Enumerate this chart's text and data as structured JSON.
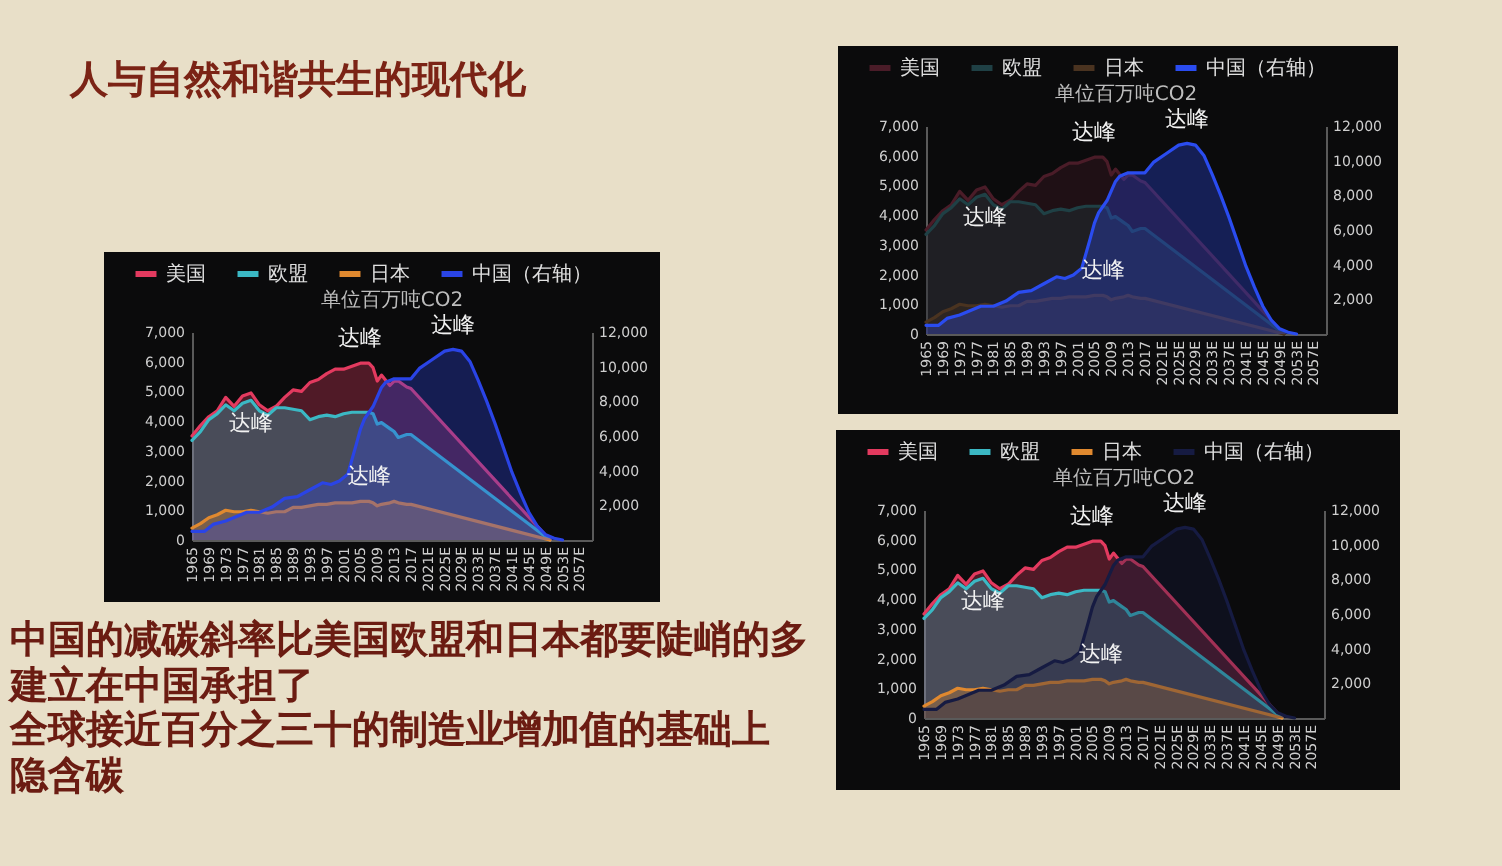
{
  "chart_data": [
    {
      "type": "other",
      "title": "人与自然和谐共生的现代化",
      "annotations": [
        "中国的减碳斜率比美国欧盟和日本都要陡峭的多",
        "建立在中国承担了",
        "全球接近百分之三十的制造业增加值的基础上",
        "隐含碳"
      ]
    },
    {
      "type": "area",
      "annotations": [
        "单位百万吨CO2",
        {
          "text": "达峰",
          "x": 2005,
          "y": 5950
        },
        {
          "text": "达峰",
          "x": 1979,
          "y": 4700
        },
        {
          "text": "达峰",
          "x": 2007,
          "y": 1300
        },
        {
          "text": "达峰",
          "x": 2027,
          "y": 6400
        }
      ],
      "xlim": [
        1965,
        2060
      ],
      "xticks": [
        1965,
        1969,
        1973,
        1977,
        1981,
        1985,
        1989,
        1993,
        1997,
        2001,
        2005,
        2009,
        2013,
        2017,
        {
          "value": 2021,
          "label": "2021E"
        },
        {
          "value": 2025,
          "label": "2025E"
        },
        {
          "value": 2029,
          "label": "2029E"
        },
        {
          "value": 2033,
          "label": "2033E"
        },
        {
          "value": 2037,
          "label": "2037E"
        },
        {
          "value": 2041,
          "label": "2041E"
        },
        {
          "value": 2045,
          "label": "2045E"
        },
        {
          "value": 2049,
          "label": "2049E"
        },
        {
          "value": 2053,
          "label": "2053E"
        },
        {
          "value": 2057,
          "label": "2057E"
        }
      ],
      "ylim": [
        0,
        7000
      ],
      "yticks": [
        {
          "value": 0,
          "label": "0"
        },
        {
          "value": 1000,
          "label": "1,000"
        },
        {
          "value": 2000,
          "label": "2,000"
        },
        {
          "value": 3000,
          "label": "3,000"
        },
        {
          "value": 4000,
          "label": "4,000"
        },
        {
          "value": 5000,
          "label": "5,000"
        },
        {
          "value": 6000,
          "label": "6,000"
        },
        {
          "value": 7000,
          "label": "7,000"
        }
      ],
      "y2lim": [
        0,
        12000
      ],
      "y2ticks": [
        {
          "value": 2000,
          "label": "2,000"
        },
        {
          "value": 4000,
          "label": "4,000"
        },
        {
          "value": 6000,
          "label": "6,000"
        },
        {
          "value": 8000,
          "label": "8,000"
        },
        {
          "value": 10000,
          "label": "10,000"
        },
        {
          "value": 12000,
          "label": "12,000"
        }
      ],
      "legend": "top",
      "series": [
        {
          "name": "美国",
          "color": "#e33a5f",
          "x": [
            1965,
            1967,
            1969,
            1971,
            1973,
            1975,
            1977,
            1979,
            1981,
            1983,
            1985,
            1987,
            1989,
            1991,
            1993,
            1995,
            1997,
            1999,
            2001,
            2003,
            2005,
            2007,
            2008,
            2009,
            2010,
            2012,
            2013,
            2014,
            2016,
            2017,
            2050
          ],
          "values": [
            3500,
            3850,
            4150,
            4350,
            4800,
            4500,
            4850,
            4950,
            4550,
            4350,
            4500,
            4800,
            5050,
            5000,
            5300,
            5400,
            5600,
            5750,
            5750,
            5850,
            5950,
            5950,
            5800,
            5350,
            5550,
            5200,
            5350,
            5350,
            5150,
            5100,
            0
          ]
        },
        {
          "name": "欧盟",
          "color": "#3bb8c4",
          "x": [
            1965,
            1967,
            1969,
            1971,
            1973,
            1975,
            1977,
            1979,
            1981,
            1983,
            1985,
            1987,
            1989,
            1991,
            1993,
            1995,
            1997,
            1999,
            2001,
            2003,
            2005,
            2007,
            2008,
            2009,
            2010,
            2012,
            2013,
            2014,
            2016,
            2017,
            2050
          ],
          "values": [
            3350,
            3650,
            4050,
            4250,
            4550,
            4350,
            4600,
            4700,
            4350,
            4200,
            4450,
            4450,
            4400,
            4350,
            4050,
            4150,
            4200,
            4150,
            4250,
            4300,
            4300,
            4300,
            4250,
            3900,
            3950,
            3750,
            3650,
            3450,
            3550,
            3550,
            0
          ]
        },
        {
          "name": "日本",
          "color": "#e0892f",
          "x": [
            1965,
            1967,
            1969,
            1971,
            1973,
            1975,
            1977,
            1979,
            1981,
            1983,
            1985,
            1987,
            1989,
            1991,
            1993,
            1995,
            1997,
            1999,
            2001,
            2003,
            2005,
            2007,
            2008,
            2009,
            2010,
            2012,
            2013,
            2014,
            2016,
            2017,
            2050
          ],
          "values": [
            400,
            550,
            750,
            850,
            1000,
            950,
            950,
            1000,
            950,
            900,
            950,
            950,
            1100,
            1100,
            1150,
            1200,
            1200,
            1250,
            1250,
            1250,
            1300,
            1300,
            1250,
            1150,
            1200,
            1250,
            1300,
            1250,
            1200,
            1200,
            0
          ]
        },
        {
          "name": "中国（右轴）",
          "color": "#2a44e6",
          "axis": "y2",
          "x": [
            1965,
            1968,
            1970,
            1973,
            1976,
            1978,
            1981,
            1984,
            1987,
            1990,
            1993,
            1996,
            1998,
            2000,
            2002,
            2004,
            2005,
            2006,
            2008,
            2010,
            2011,
            2013,
            2015,
            2017,
            2019,
            2022,
            2025,
            2027,
            2029,
            2031,
            2033,
            2035,
            2037,
            2039,
            2041,
            2043,
            2045,
            2047,
            2049,
            2051,
            2053
          ],
          "values": [
            500,
            500,
            900,
            1100,
            1400,
            1600,
            1600,
            1900,
            2400,
            2500,
            2900,
            3300,
            3200,
            3400,
            3800,
            5500,
            6400,
            7000,
            7700,
            8800,
            9100,
            9300,
            9300,
            9300,
            9900,
            10400,
            10900,
            11000,
            10900,
            10300,
            9200,
            8000,
            6700,
            5300,
            3900,
            2700,
            1600,
            800,
            300,
            100,
            0
          ]
        }
      ]
    },
    {
      "type": "area",
      "annotations": [
        "单位百万吨CO2",
        {
          "text": "达峰",
          "x": 2005,
          "y": 5950
        },
        {
          "text": "达峰",
          "x": 1979,
          "y": 4700
        },
        {
          "text": "达峰",
          "x": 2007,
          "y": 1300
        },
        {
          "text": "达峰",
          "x": 2027,
          "y": 6400
        }
      ],
      "xlim": [
        1965,
        2060
      ],
      "xticks": [
        1965,
        1969,
        1973,
        1977,
        1981,
        1985,
        1989,
        1993,
        1997,
        2001,
        2005,
        2009,
        2013,
        2017,
        {
          "value": 2021,
          "label": "2021E"
        },
        {
          "value": 2025,
          "label": "2025E"
        },
        {
          "value": 2029,
          "label": "2029E"
        },
        {
          "value": 2033,
          "label": "2033E"
        },
        {
          "value": 2037,
          "label": "2037E"
        },
        {
          "value": 2041,
          "label": "2041E"
        },
        {
          "value": 2045,
          "label": "2045E"
        },
        {
          "value": 2049,
          "label": "2049E"
        },
        {
          "value": 2053,
          "label": "2053E"
        },
        {
          "value": 2057,
          "label": "2057E"
        }
      ],
      "ylim": [
        0,
        7000
      ],
      "yticks": [
        {
          "value": 0,
          "label": "0"
        },
        {
          "value": 1000,
          "label": "1,000"
        },
        {
          "value": 2000,
          "label": "2,000"
        },
        {
          "value": 3000,
          "label": "3,000"
        },
        {
          "value": 4000,
          "label": "4,000"
        },
        {
          "value": 5000,
          "label": "5,000"
        },
        {
          "value": 6000,
          "label": "6,000"
        },
        {
          "value": 7000,
          "label": "7,000"
        }
      ],
      "y2lim": [
        0,
        12000
      ],
      "y2ticks": [
        {
          "value": 2000,
          "label": "2,000"
        },
        {
          "value": 4000,
          "label": "4,000"
        },
        {
          "value": 6000,
          "label": "6,000"
        },
        {
          "value": 8000,
          "label": "8,000"
        },
        {
          "value": 10000,
          "label": "10,000"
        },
        {
          "value": 12000,
          "label": "12,000"
        }
      ],
      "legend": "top",
      "series": [
        {
          "name": "美国",
          "color": "#4a1c28",
          "x": [
            1965,
            1967,
            1969,
            1971,
            1973,
            1975,
            1977,
            1979,
            1981,
            1983,
            1985,
            1987,
            1989,
            1991,
            1993,
            1995,
            1997,
            1999,
            2001,
            2003,
            2005,
            2007,
            2008,
            2009,
            2010,
            2012,
            2013,
            2014,
            2016,
            2017,
            2050
          ],
          "values": [
            3500,
            3850,
            4150,
            4350,
            4800,
            4500,
            4850,
            4950,
            4550,
            4350,
            4500,
            4800,
            5050,
            5000,
            5300,
            5400,
            5600,
            5750,
            5750,
            5850,
            5950,
            5950,
            5800,
            5350,
            5550,
            5200,
            5350,
            5350,
            5150,
            5100,
            0
          ]
        },
        {
          "name": "欧盟",
          "color": "#1f4045",
          "x": [
            1965,
            1967,
            1969,
            1971,
            1973,
            1975,
            1977,
            1979,
            1981,
            1983,
            1985,
            1987,
            1989,
            1991,
            1993,
            1995,
            1997,
            1999,
            2001,
            2003,
            2005,
            2007,
            2008,
            2009,
            2010,
            2012,
            2013,
            2014,
            2016,
            2017,
            2050
          ],
          "values": [
            3350,
            3650,
            4050,
            4250,
            4550,
            4350,
            4600,
            4700,
            4350,
            4200,
            4450,
            4450,
            4400,
            4350,
            4050,
            4150,
            4200,
            4150,
            4250,
            4300,
            4300,
            4300,
            4250,
            3900,
            3950,
            3750,
            3650,
            3450,
            3550,
            3550,
            0
          ]
        },
        {
          "name": "日本",
          "color": "#4a3320",
          "x": [
            1965,
            1967,
            1969,
            1971,
            1973,
            1975,
            1977,
            1979,
            1981,
            1983,
            1985,
            1987,
            1989,
            1991,
            1993,
            1995,
            1997,
            1999,
            2001,
            2003,
            2005,
            2007,
            2008,
            2009,
            2010,
            2012,
            2013,
            2014,
            2016,
            2017,
            2050
          ],
          "values": [
            400,
            550,
            750,
            850,
            1000,
            950,
            950,
            1000,
            950,
            900,
            950,
            950,
            1100,
            1100,
            1150,
            1200,
            1200,
            1250,
            1250,
            1250,
            1300,
            1300,
            1250,
            1150,
            1200,
            1250,
            1300,
            1250,
            1200,
            1200,
            0
          ]
        },
        {
          "name": "中国（右轴）",
          "color": "#2a4cf0",
          "axis": "y2",
          "x": [
            1965,
            1968,
            1970,
            1973,
            1976,
            1978,
            1981,
            1984,
            1987,
            1990,
            1993,
            1996,
            1998,
            2000,
            2002,
            2004,
            2005,
            2006,
            2008,
            2010,
            2011,
            2013,
            2015,
            2017,
            2019,
            2022,
            2025,
            2027,
            2029,
            2031,
            2033,
            2035,
            2037,
            2039,
            2041,
            2043,
            2045,
            2047,
            2049,
            2051,
            2053
          ],
          "values": [
            500,
            500,
            900,
            1100,
            1400,
            1600,
            1600,
            1900,
            2400,
            2500,
            2900,
            3300,
            3200,
            3400,
            3800,
            5500,
            6400,
            7000,
            7700,
            8800,
            9100,
            9300,
            9300,
            9300,
            9900,
            10400,
            10900,
            11000,
            10900,
            10300,
            9200,
            8000,
            6700,
            5300,
            3900,
            2700,
            1600,
            800,
            300,
            100,
            0
          ]
        }
      ]
    },
    {
      "type": "area",
      "annotations": [
        "单位百万吨CO2",
        {
          "text": "达峰",
          "x": 2005,
          "y": 5950
        },
        {
          "text": "达峰",
          "x": 1979,
          "y": 4700
        },
        {
          "text": "达峰",
          "x": 2007,
          "y": 1300
        },
        {
          "text": "达峰",
          "x": 2027,
          "y": 6400
        }
      ],
      "xlim": [
        1965,
        2060
      ],
      "xticks": [
        1965,
        1969,
        1973,
        1977,
        1981,
        1985,
        1989,
        1993,
        1997,
        2001,
        2005,
        2009,
        2013,
        2017,
        {
          "value": 2021,
          "label": "2021E"
        },
        {
          "value": 2025,
          "label": "2025E"
        },
        {
          "value": 2029,
          "label": "2029E"
        },
        {
          "value": 2033,
          "label": "2033E"
        },
        {
          "value": 2037,
          "label": "2037E"
        },
        {
          "value": 2041,
          "label": "2041E"
        },
        {
          "value": 2045,
          "label": "2045E"
        },
        {
          "value": 2049,
          "label": "2049E"
        },
        {
          "value": 2053,
          "label": "2053E"
        },
        {
          "value": 2057,
          "label": "2057E"
        }
      ],
      "ylim": [
        0,
        7000
      ],
      "yticks": [
        {
          "value": 0,
          "label": "0"
        },
        {
          "value": 1000,
          "label": "1,000"
        },
        {
          "value": 2000,
          "label": "2,000"
        },
        {
          "value": 3000,
          "label": "3,000"
        },
        {
          "value": 4000,
          "label": "4,000"
        },
        {
          "value": 5000,
          "label": "5,000"
        },
        {
          "value": 6000,
          "label": "6,000"
        },
        {
          "value": 7000,
          "label": "7,000"
        }
      ],
      "y2lim": [
        0,
        12000
      ],
      "y2ticks": [
        {
          "value": 2000,
          "label": "2,000"
        },
        {
          "value": 4000,
          "label": "4,000"
        },
        {
          "value": 6000,
          "label": "6,000"
        },
        {
          "value": 8000,
          "label": "8,000"
        },
        {
          "value": 10000,
          "label": "10,000"
        },
        {
          "value": 12000,
          "label": "12,000"
        }
      ],
      "legend": "top",
      "series": [
        {
          "name": "美国",
          "color": "#e33a5f",
          "x": [
            1965,
            1967,
            1969,
            1971,
            1973,
            1975,
            1977,
            1979,
            1981,
            1983,
            1985,
            1987,
            1989,
            1991,
            1993,
            1995,
            1997,
            1999,
            2001,
            2003,
            2005,
            2007,
            2008,
            2009,
            2010,
            2012,
            2013,
            2014,
            2016,
            2017,
            2050
          ],
          "values": [
            3500,
            3850,
            4150,
            4350,
            4800,
            4500,
            4850,
            4950,
            4550,
            4350,
            4500,
            4800,
            5050,
            5000,
            5300,
            5400,
            5600,
            5750,
            5750,
            5850,
            5950,
            5950,
            5800,
            5350,
            5550,
            5200,
            5350,
            5350,
            5150,
            5100,
            0
          ]
        },
        {
          "name": "欧盟",
          "color": "#3bb8c4",
          "x": [
            1965,
            1967,
            1969,
            1971,
            1973,
            1975,
            1977,
            1979,
            1981,
            1983,
            1985,
            1987,
            1989,
            1991,
            1993,
            1995,
            1997,
            1999,
            2001,
            2003,
            2005,
            2007,
            2008,
            2009,
            2010,
            2012,
            2013,
            2014,
            2016,
            2017,
            2050
          ],
          "values": [
            3350,
            3650,
            4050,
            4250,
            4550,
            4350,
            4600,
            4700,
            4350,
            4200,
            4450,
            4450,
            4400,
            4350,
            4050,
            4150,
            4200,
            4150,
            4250,
            4300,
            4300,
            4300,
            4250,
            3900,
            3950,
            3750,
            3650,
            3450,
            3550,
            3550,
            0
          ]
        },
        {
          "name": "日本",
          "color": "#e0892f",
          "x": [
            1965,
            1967,
            1969,
            1971,
            1973,
            1975,
            1977,
            1979,
            1981,
            1983,
            1985,
            1987,
            1989,
            1991,
            1993,
            1995,
            1997,
            1999,
            2001,
            2003,
            2005,
            2007,
            2008,
            2009,
            2010,
            2012,
            2013,
            2014,
            2016,
            2017,
            2050
          ],
          "values": [
            400,
            550,
            750,
            850,
            1000,
            950,
            950,
            1000,
            950,
            900,
            950,
            950,
            1100,
            1100,
            1150,
            1200,
            1200,
            1250,
            1250,
            1250,
            1300,
            1300,
            1250,
            1150,
            1200,
            1250,
            1300,
            1250,
            1200,
            1200,
            0
          ]
        },
        {
          "name": "中国（右轴）",
          "color": "#161b42",
          "axis": "y2",
          "x": [
            1965,
            1968,
            1970,
            1973,
            1976,
            1978,
            1981,
            1984,
            1987,
            1990,
            1993,
            1996,
            1998,
            2000,
            2002,
            2004,
            2005,
            2006,
            2008,
            2010,
            2011,
            2013,
            2015,
            2017,
            2019,
            2022,
            2025,
            2027,
            2029,
            2031,
            2033,
            2035,
            2037,
            2039,
            2041,
            2043,
            2045,
            2047,
            2049,
            2051,
            2053
          ],
          "values": [
            500,
            500,
            900,
            1100,
            1400,
            1600,
            1600,
            1900,
            2400,
            2500,
            2900,
            3300,
            3200,
            3400,
            3800,
            5500,
            6400,
            7000,
            7700,
            8800,
            9100,
            9300,
            9300,
            9300,
            9900,
            10400,
            10900,
            11000,
            10900,
            10300,
            9200,
            8000,
            6700,
            5300,
            3900,
            2700,
            1600,
            800,
            300,
            100,
            0
          ]
        }
      ]
    }
  ]
}
